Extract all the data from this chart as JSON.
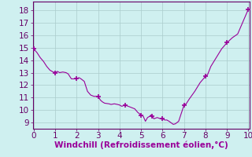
{
  "xlabel": "Windchill (Refroidissement éolien,°C)",
  "background_color": "#cff0f0",
  "line_color": "#990099",
  "marker_color": "#990099",
  "xlabel_color": "#990099",
  "tick_color": "#660066",
  "grid_color": "#aacccc",
  "spine_color": "#660066",
  "xlim": [
    -0.05,
    10.05
  ],
  "ylim": [
    8.5,
    18.7
  ],
  "xticks": [
    0,
    1,
    2,
    3,
    4,
    5,
    6,
    7,
    8,
    9,
    10
  ],
  "yticks": [
    9,
    10,
    11,
    12,
    13,
    14,
    15,
    16,
    17,
    18
  ],
  "x": [
    0.0,
    0.15,
    0.3,
    0.45,
    0.6,
    0.75,
    0.9,
    1.0,
    1.1,
    1.2,
    1.35,
    1.5,
    1.6,
    1.75,
    2.0,
    2.1,
    2.2,
    2.35,
    2.5,
    2.65,
    2.8,
    3.0,
    3.1,
    3.2,
    3.3,
    3.5,
    3.6,
    3.75,
    3.9,
    4.0,
    4.1,
    4.25,
    4.4,
    4.55,
    4.7,
    4.85,
    5.0,
    5.1,
    5.2,
    5.3,
    5.4,
    5.45,
    5.5,
    5.6,
    5.75,
    5.9,
    6.0,
    6.1,
    6.2,
    6.3,
    6.5,
    6.6,
    6.75,
    7.0,
    7.1,
    7.25,
    7.5,
    7.75,
    8.0,
    8.1,
    8.25,
    8.5,
    8.75,
    9.0,
    9.25,
    9.5,
    9.75,
    10.0
  ],
  "y": [
    14.9,
    14.6,
    14.2,
    13.9,
    13.5,
    13.2,
    13.05,
    13.0,
    13.1,
    13.0,
    13.05,
    13.0,
    12.9,
    12.5,
    12.5,
    12.6,
    12.5,
    12.3,
    11.5,
    11.2,
    11.1,
    11.1,
    10.8,
    10.65,
    10.55,
    10.5,
    10.45,
    10.5,
    10.45,
    10.4,
    10.3,
    10.4,
    10.3,
    10.2,
    10.1,
    9.8,
    9.6,
    9.5,
    9.1,
    9.4,
    9.5,
    9.6,
    9.5,
    9.3,
    9.4,
    9.3,
    9.3,
    9.2,
    9.2,
    9.1,
    8.85,
    8.9,
    9.1,
    10.4,
    10.5,
    10.9,
    11.5,
    12.2,
    12.7,
    12.85,
    13.5,
    14.2,
    14.9,
    15.4,
    15.8,
    16.1,
    17.1,
    18.1
  ],
  "marker_x": [
    0.0,
    1.0,
    2.0,
    3.0,
    4.25,
    5.0,
    5.5,
    6.0,
    7.0,
    8.0,
    9.0,
    10.0
  ],
  "marker_y": [
    14.9,
    13.0,
    12.5,
    11.1,
    10.4,
    9.6,
    9.5,
    9.3,
    10.4,
    12.7,
    15.4,
    18.1
  ],
  "tick_fontsize": 7.5,
  "xlabel_fontsize": 7.5
}
